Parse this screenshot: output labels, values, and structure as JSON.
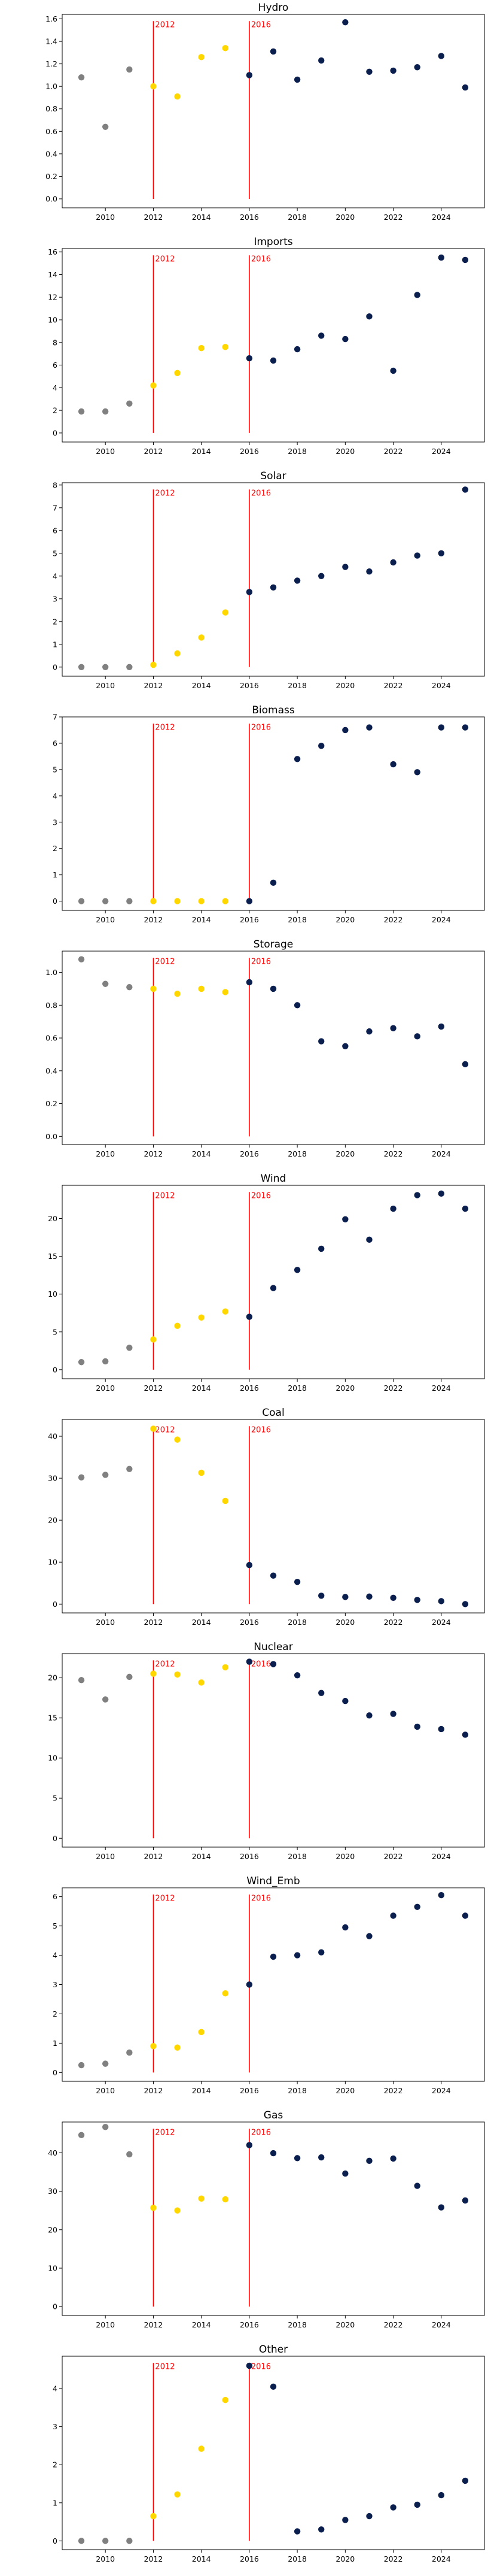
{
  "colors": {
    "pre": "#808080",
    "transition": "#ffd700",
    "post": "#0b1f4f",
    "marker": "#ff0000",
    "frame": "#000000"
  },
  "markers": [
    {
      "year": 2012,
      "label": "2012"
    },
    {
      "year": 2016,
      "label": "2016"
    }
  ],
  "chart_data": [
    {
      "type": "scatter",
      "title": "Hydro",
      "xlim": [
        2008.2,
        2025.8
      ],
      "ylim": [
        -0.08,
        1.64
      ],
      "xticks": [
        2010,
        2012,
        2014,
        2016,
        2018,
        2020,
        2022,
        2024
      ],
      "xtick_labels": [
        "2010",
        "2012",
        "2014",
        "2016",
        "2018",
        "2020",
        "2022",
        "2024"
      ],
      "yticks": [
        0.0,
        0.2,
        0.4,
        0.6,
        0.8,
        1.0,
        1.2,
        1.4,
        1.6
      ],
      "ytick_labels": [
        "0.0",
        "0.2",
        "0.4",
        "0.6",
        "0.8",
        "1.0",
        "1.2",
        "1.4",
        "1.6"
      ],
      "series": [
        {
          "group": "pre",
          "x": [
            2009,
            2010,
            2011
          ],
          "y": [
            1.08,
            0.64,
            1.15
          ]
        },
        {
          "group": "transition",
          "x": [
            2012,
            2013,
            2014,
            2015
          ],
          "y": [
            1.0,
            0.91,
            1.26,
            1.34
          ]
        },
        {
          "group": "post",
          "x": [
            2016,
            2017,
            2018,
            2019,
            2020,
            2021,
            2022,
            2023,
            2024,
            2025
          ],
          "y": [
            1.1,
            1.31,
            1.06,
            1.23,
            1.57,
            1.13,
            1.14,
            1.17,
            1.27,
            0.99
          ]
        }
      ]
    },
    {
      "type": "scatter",
      "title": "Imports",
      "xlim": [
        2008.2,
        2025.8
      ],
      "ylim": [
        -0.8,
        16.3
      ],
      "xticks": [
        2010,
        2012,
        2014,
        2016,
        2018,
        2020,
        2022,
        2024
      ],
      "xtick_labels": [
        "2010",
        "2012",
        "2014",
        "2016",
        "2018",
        "2020",
        "2022",
        "2024"
      ],
      "yticks": [
        0,
        2,
        4,
        6,
        8,
        10,
        12,
        14,
        16
      ],
      "ytick_labels": [
        "0",
        "2",
        "4",
        "6",
        "8",
        "10",
        "12",
        "14",
        "16"
      ],
      "series": [
        {
          "group": "pre",
          "x": [
            2009,
            2010,
            2011
          ],
          "y": [
            1.9,
            1.9,
            2.6
          ]
        },
        {
          "group": "transition",
          "x": [
            2012,
            2013,
            2014,
            2015
          ],
          "y": [
            4.2,
            5.3,
            7.5,
            7.6
          ]
        },
        {
          "group": "post",
          "x": [
            2016,
            2017,
            2018,
            2019,
            2020,
            2021,
            2022,
            2023,
            2024,
            2025
          ],
          "y": [
            6.6,
            6.4,
            7.4,
            8.6,
            8.3,
            10.3,
            5.5,
            12.2,
            15.5,
            15.3
          ]
        }
      ]
    },
    {
      "type": "scatter",
      "title": "Solar",
      "xlim": [
        2008.2,
        2025.8
      ],
      "ylim": [
        -0.4,
        8.1
      ],
      "xticks": [
        2010,
        2012,
        2014,
        2016,
        2018,
        2020,
        2022,
        2024
      ],
      "xtick_labels": [
        "2010",
        "2012",
        "2014",
        "2016",
        "2018",
        "2020",
        "2022",
        "2024"
      ],
      "yticks": [
        0,
        1,
        2,
        3,
        4,
        5,
        6,
        7,
        8
      ],
      "ytick_labels": [
        "0",
        "1",
        "2",
        "3",
        "4",
        "5",
        "6",
        "7",
        "8"
      ],
      "series": [
        {
          "group": "pre",
          "x": [
            2009,
            2010,
            2011
          ],
          "y": [
            0.0,
            0.0,
            0.0
          ]
        },
        {
          "group": "transition",
          "x": [
            2012,
            2013,
            2014,
            2015
          ],
          "y": [
            0.1,
            0.6,
            1.3,
            2.4
          ]
        },
        {
          "group": "post",
          "x": [
            2016,
            2017,
            2018,
            2019,
            2020,
            2021,
            2022,
            2023,
            2024,
            2025
          ],
          "y": [
            3.3,
            3.5,
            3.8,
            4.0,
            4.4,
            4.2,
            4.6,
            4.9,
            5.0,
            7.8
          ]
        }
      ]
    },
    {
      "type": "scatter",
      "title": "Biomass",
      "xlim": [
        2008.2,
        2025.8
      ],
      "ylim": [
        -0.35,
        7.0
      ],
      "xticks": [
        2010,
        2012,
        2014,
        2016,
        2018,
        2020,
        2022,
        2024
      ],
      "xtick_labels": [
        "2010",
        "2012",
        "2014",
        "2016",
        "2018",
        "2020",
        "2022",
        "2024"
      ],
      "yticks": [
        0,
        1,
        2,
        3,
        4,
        5,
        6,
        7
      ],
      "ytick_labels": [
        "0",
        "1",
        "2",
        "3",
        "4",
        "5",
        "6",
        "7"
      ],
      "series": [
        {
          "group": "pre",
          "x": [
            2009,
            2010,
            2011
          ],
          "y": [
            0.0,
            0.0,
            0.0
          ]
        },
        {
          "group": "transition",
          "x": [
            2012,
            2013,
            2014,
            2015
          ],
          "y": [
            0.0,
            0.0,
            0.0,
            0.0
          ]
        },
        {
          "group": "post",
          "x": [
            2016,
            2017,
            2018,
            2019,
            2020,
            2021,
            2022,
            2023,
            2024,
            2025
          ],
          "y": [
            0.0,
            0.7,
            5.4,
            5.9,
            6.5,
            6.6,
            5.2,
            4.9,
            6.6,
            6.6
          ]
        }
      ]
    },
    {
      "type": "scatter",
      "title": "Storage",
      "xlim": [
        2008.2,
        2025.8
      ],
      "ylim": [
        -0.05,
        1.13
      ],
      "xticks": [
        2010,
        2012,
        2014,
        2016,
        2018,
        2020,
        2022,
        2024
      ],
      "xtick_labels": [
        "2010",
        "2012",
        "2014",
        "2016",
        "2018",
        "2020",
        "2022",
        "2024"
      ],
      "yticks": [
        0.0,
        0.2,
        0.4,
        0.6,
        0.8,
        1.0
      ],
      "ytick_labels": [
        "0.0",
        "0.2",
        "0.4",
        "0.6",
        "0.8",
        "1.0"
      ],
      "series": [
        {
          "group": "pre",
          "x": [
            2009,
            2010,
            2011
          ],
          "y": [
            1.08,
            0.93,
            0.91
          ]
        },
        {
          "group": "transition",
          "x": [
            2012,
            2013,
            2014,
            2015
          ],
          "y": [
            0.9,
            0.87,
            0.9,
            0.88
          ]
        },
        {
          "group": "post",
          "x": [
            2016,
            2017,
            2018,
            2019,
            2020,
            2021,
            2022,
            2023,
            2024,
            2025
          ],
          "y": [
            0.94,
            0.9,
            0.8,
            0.58,
            0.55,
            0.64,
            0.66,
            0.61,
            0.67,
            0.44
          ]
        }
      ]
    },
    {
      "type": "scatter",
      "title": "Wind",
      "xlim": [
        2008.2,
        2025.8
      ],
      "ylim": [
        -1.2,
        24.4
      ],
      "xticks": [
        2010,
        2012,
        2014,
        2016,
        2018,
        2020,
        2022,
        2024
      ],
      "xtick_labels": [
        "2010",
        "2012",
        "2014",
        "2016",
        "2018",
        "2020",
        "2022",
        "2024"
      ],
      "yticks": [
        0,
        5,
        10,
        15,
        20
      ],
      "ytick_labels": [
        "0",
        "5",
        "10",
        "15",
        "20"
      ],
      "series": [
        {
          "group": "pre",
          "x": [
            2009,
            2010,
            2011
          ],
          "y": [
            1.0,
            1.1,
            2.9
          ]
        },
        {
          "group": "transition",
          "x": [
            2012,
            2013,
            2014,
            2015
          ],
          "y": [
            4.0,
            5.8,
            6.9,
            7.7
          ]
        },
        {
          "group": "post",
          "x": [
            2016,
            2017,
            2018,
            2019,
            2020,
            2021,
            2022,
            2023,
            2024,
            2025
          ],
          "y": [
            7.0,
            10.8,
            13.2,
            16.0,
            19.9,
            17.2,
            21.3,
            23.1,
            23.3,
            21.3
          ]
        }
      ]
    },
    {
      "type": "scatter",
      "title": "Coal",
      "xlim": [
        2008.2,
        2025.8
      ],
      "ylim": [
        -2.1,
        44.0
      ],
      "xticks": [
        2010,
        2012,
        2014,
        2016,
        2018,
        2020,
        2022,
        2024
      ],
      "xtick_labels": [
        "2010",
        "2012",
        "2014",
        "2016",
        "2018",
        "2020",
        "2022",
        "2024"
      ],
      "yticks": [
        0,
        10,
        20,
        30,
        40
      ],
      "ytick_labels": [
        "0",
        "10",
        "20",
        "30",
        "40"
      ],
      "series": [
        {
          "group": "pre",
          "x": [
            2009,
            2010,
            2011
          ],
          "y": [
            30.2,
            30.8,
            32.2
          ]
        },
        {
          "group": "transition",
          "x": [
            2012,
            2013,
            2014,
            2015
          ],
          "y": [
            41.8,
            39.2,
            31.3,
            24.6
          ]
        },
        {
          "group": "post",
          "x": [
            2016,
            2017,
            2018,
            2019,
            2020,
            2021,
            2022,
            2023,
            2024,
            2025
          ],
          "y": [
            9.3,
            6.8,
            5.3,
            2.0,
            1.7,
            1.8,
            1.5,
            1.0,
            0.7,
            0.0
          ]
        }
      ]
    },
    {
      "type": "scatter",
      "title": "Nuclear",
      "xlim": [
        2008.2,
        2025.8
      ],
      "ylim": [
        -1.1,
        23.0
      ],
      "xticks": [
        2010,
        2012,
        2014,
        2016,
        2018,
        2020,
        2022,
        2024
      ],
      "xtick_labels": [
        "2010",
        "2012",
        "2014",
        "2016",
        "2018",
        "2020",
        "2022",
        "2024"
      ],
      "yticks": [
        0,
        5,
        10,
        15,
        20
      ],
      "ytick_labels": [
        "0",
        "5",
        "10",
        "15",
        "20"
      ],
      "series": [
        {
          "group": "pre",
          "x": [
            2009,
            2010,
            2011
          ],
          "y": [
            19.7,
            17.3,
            20.1
          ]
        },
        {
          "group": "transition",
          "x": [
            2012,
            2013,
            2014,
            2015
          ],
          "y": [
            20.5,
            20.4,
            19.4,
            21.3
          ]
        },
        {
          "group": "post",
          "x": [
            2016,
            2017,
            2018,
            2019,
            2020,
            2021,
            2022,
            2023,
            2024,
            2025
          ],
          "y": [
            22.0,
            21.7,
            20.3,
            18.1,
            17.1,
            15.3,
            15.5,
            13.9,
            13.6,
            12.9
          ]
        }
      ]
    },
    {
      "type": "scatter",
      "title": "Wind_Emb",
      "xlim": [
        2008.2,
        2025.8
      ],
      "ylim": [
        -0.3,
        6.3
      ],
      "xticks": [
        2010,
        2012,
        2014,
        2016,
        2018,
        2020,
        2022,
        2024
      ],
      "xtick_labels": [
        "2010",
        "2012",
        "2014",
        "2016",
        "2018",
        "2020",
        "2022",
        "2024"
      ],
      "yticks": [
        0,
        1,
        2,
        3,
        4,
        5,
        6
      ],
      "ytick_labels": [
        "0",
        "1",
        "2",
        "3",
        "4",
        "5",
        "6"
      ],
      "series": [
        {
          "group": "pre",
          "x": [
            2009,
            2010,
            2011
          ],
          "y": [
            0.25,
            0.3,
            0.68
          ]
        },
        {
          "group": "transition",
          "x": [
            2012,
            2013,
            2014,
            2015
          ],
          "y": [
            0.9,
            0.85,
            1.38,
            2.7
          ]
        },
        {
          "group": "post",
          "x": [
            2016,
            2017,
            2018,
            2019,
            2020,
            2021,
            2022,
            2023,
            2024,
            2025
          ],
          "y": [
            3.0,
            3.95,
            4.0,
            4.1,
            4.95,
            4.65,
            5.35,
            5.65,
            6.05,
            5.35
          ]
        }
      ]
    },
    {
      "type": "scatter",
      "title": "Gas",
      "xlim": [
        2008.2,
        2025.8
      ],
      "ylim": [
        -2.3,
        48.0
      ],
      "xticks": [
        2010,
        2012,
        2014,
        2016,
        2018,
        2020,
        2022,
        2024
      ],
      "xtick_labels": [
        "2010",
        "2012",
        "2014",
        "2016",
        "2018",
        "2020",
        "2022",
        "2024"
      ],
      "yticks": [
        0,
        10,
        20,
        30,
        40
      ],
      "ytick_labels": [
        "0",
        "10",
        "20",
        "30",
        "40"
      ],
      "series": [
        {
          "group": "pre",
          "x": [
            2009,
            2010,
            2011
          ],
          "y": [
            44.6,
            46.7,
            39.6
          ]
        },
        {
          "group": "transition",
          "x": [
            2012,
            2013,
            2014,
            2015
          ],
          "y": [
            25.7,
            25.0,
            28.1,
            27.9
          ]
        },
        {
          "group": "post",
          "x": [
            2016,
            2017,
            2018,
            2019,
            2020,
            2021,
            2022,
            2023,
            2024,
            2025
          ],
          "y": [
            42.0,
            39.9,
            38.6,
            38.8,
            34.6,
            37.9,
            38.5,
            31.4,
            25.8,
            27.6
          ]
        }
      ]
    },
    {
      "type": "scatter",
      "title": "Other",
      "xlim": [
        2008.2,
        2025.8
      ],
      "ylim": [
        -0.23,
        4.85
      ],
      "xticks": [
        2010,
        2012,
        2014,
        2016,
        2018,
        2020,
        2022,
        2024
      ],
      "xtick_labels": [
        "2010",
        "2012",
        "2014",
        "2016",
        "2018",
        "2020",
        "2022",
        "2024"
      ],
      "yticks": [
        0,
        1,
        2,
        3,
        4
      ],
      "ytick_labels": [
        "0",
        "1",
        "2",
        "3",
        "4"
      ],
      "series": [
        {
          "group": "pre",
          "x": [
            2009,
            2010,
            2011
          ],
          "y": [
            0.0,
            0.0,
            0.0
          ]
        },
        {
          "group": "transition",
          "x": [
            2012,
            2013,
            2014,
            2015
          ],
          "y": [
            0.65,
            1.22,
            2.42,
            3.7
          ]
        },
        {
          "group": "post",
          "x": [
            2016,
            2017,
            2018,
            2019,
            2020,
            2021,
            2022,
            2023,
            2024,
            2025
          ],
          "y": [
            4.6,
            4.05,
            0.25,
            0.3,
            0.55,
            0.65,
            0.88,
            0.95,
            1.2,
            1.58
          ]
        }
      ]
    }
  ]
}
